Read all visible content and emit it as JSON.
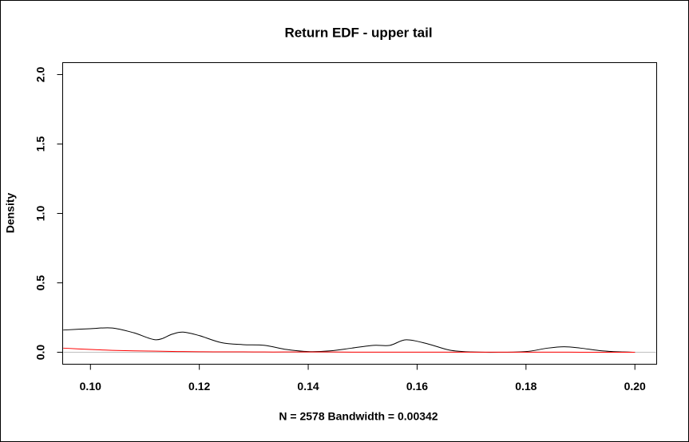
{
  "chart_data": {
    "type": "line",
    "title": "Return EDF - upper tail",
    "xlabel": "N = 2578   Bandwidth = 0.00342",
    "ylabel": "Density",
    "x": [
      0.095,
      0.1,
      0.104,
      0.108,
      0.112,
      0.115,
      0.117,
      0.12,
      0.124,
      0.128,
      0.132,
      0.136,
      0.14,
      0.144,
      0.148,
      0.152,
      0.155,
      0.158,
      0.162,
      0.166,
      0.17,
      0.175,
      0.18,
      0.184,
      0.187,
      0.19,
      0.194,
      0.198,
      0.2
    ],
    "series": [
      {
        "color": "#000000",
        "values": [
          0.16,
          0.17,
          0.175,
          0.14,
          0.09,
          0.13,
          0.145,
          0.12,
          0.07,
          0.055,
          0.05,
          0.02,
          0.005,
          0.01,
          0.03,
          0.05,
          0.05,
          0.09,
          0.06,
          0.015,
          0.002,
          0,
          0.005,
          0.03,
          0.04,
          0.03,
          0.01,
          0.002,
          0
        ]
      },
      {
        "color": "#ff0000",
        "values": [
          0.03,
          0.02,
          0.014,
          0.01,
          0.008,
          0.006,
          0.005,
          0.004,
          0.003,
          0.003,
          0.002,
          0.002,
          0.002,
          0.002,
          0.001,
          0.001,
          0.001,
          0.001,
          0.001,
          0.001,
          0.001,
          0.001,
          0.001,
          0.001,
          0.001,
          0,
          0,
          0,
          0
        ]
      }
    ],
    "xlim": [
      0.0949,
      0.204
    ],
    "ylim": [
      -0.086,
      2.086
    ],
    "xticks": [
      {
        "value": 0.1,
        "label": "0.10"
      },
      {
        "value": 0.12,
        "label": "0.12"
      },
      {
        "value": 0.14,
        "label": "0.14"
      },
      {
        "value": 0.16,
        "label": "0.16"
      },
      {
        "value": 0.18,
        "label": "0.18"
      },
      {
        "value": 0.2,
        "label": "0.20"
      }
    ],
    "yticks": [
      {
        "value": 0,
        "label": "0.0"
      },
      {
        "value": 0.5,
        "label": "0.5"
      },
      {
        "value": 1,
        "label": "1.0"
      },
      {
        "value": 1.5,
        "label": "1.5"
      },
      {
        "value": 2,
        "label": "2.0"
      }
    ],
    "zero_line": true,
    "zero_line_color": "#bebebe"
  }
}
